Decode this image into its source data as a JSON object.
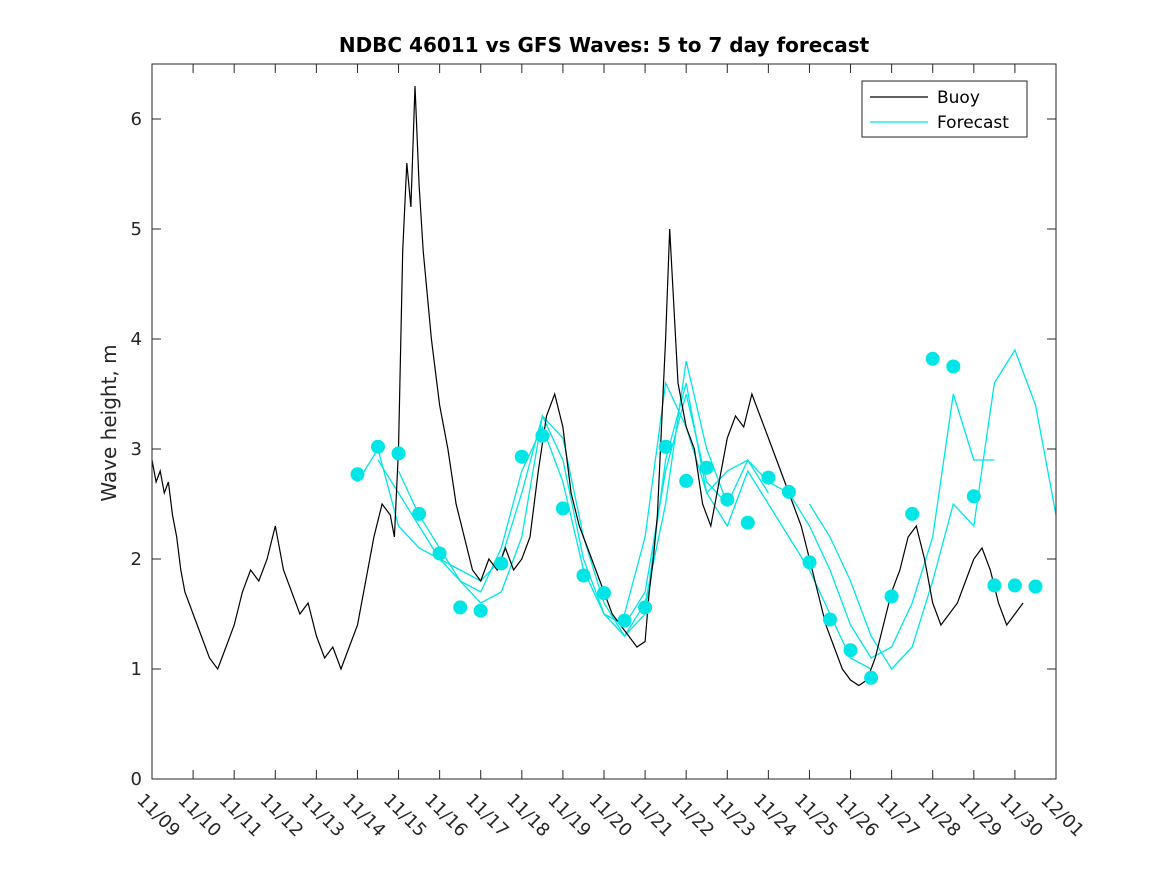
{
  "chart_data": {
    "type": "line",
    "title": "NDBC 46011 vs GFS Waves: 5 to 7 day forecast",
    "xlabel": "",
    "ylabel": "Wave height, m",
    "xlim": [
      0,
      22
    ],
    "ylim": [
      0,
      6.5
    ],
    "yticks": [
      0,
      1,
      2,
      3,
      4,
      5,
      6
    ],
    "xtick_labels": [
      "11/09",
      "11/10",
      "11/11",
      "11/12",
      "11/13",
      "11/14",
      "11/15",
      "11/16",
      "11/17",
      "11/18",
      "11/19",
      "11/20",
      "11/21",
      "11/22",
      "11/23",
      "11/24",
      "11/25",
      "11/26",
      "11/27",
      "11/28",
      "11/29",
      "11/30",
      "12/01"
    ],
    "legend": {
      "position": "top-right",
      "entries": [
        "Buoy",
        "Forecast"
      ]
    },
    "colors": {
      "buoy": "#000000",
      "forecast": "#00e5e5"
    },
    "series": [
      {
        "name": "Buoy",
        "x": [
          0.0,
          0.1,
          0.2,
          0.3,
          0.4,
          0.5,
          0.6,
          0.7,
          0.8,
          1.0,
          1.2,
          1.4,
          1.6,
          1.8,
          2.0,
          2.2,
          2.4,
          2.6,
          2.8,
          3.0,
          3.2,
          3.4,
          3.6,
          3.8,
          4.0,
          4.2,
          4.4,
          4.6,
          4.8,
          5.0,
          5.2,
          5.4,
          5.6,
          5.8,
          5.9,
          6.0,
          6.1,
          6.2,
          6.3,
          6.4,
          6.5,
          6.6,
          6.8,
          7.0,
          7.2,
          7.4,
          7.6,
          7.8,
          8.0,
          8.2,
          8.4,
          8.6,
          8.8,
          9.0,
          9.2,
          9.4,
          9.6,
          9.8,
          10.0,
          10.2,
          10.4,
          10.6,
          10.8,
          11.0,
          11.2,
          11.4,
          11.6,
          11.8,
          12.0,
          12.1,
          12.2,
          12.3,
          12.4,
          12.5,
          12.6,
          12.8,
          13.0,
          13.2,
          13.4,
          13.6,
          13.8,
          14.0,
          14.2,
          14.4,
          14.6,
          14.8,
          15.0,
          15.2,
          15.4,
          15.6,
          15.8,
          16.0,
          16.2,
          16.4,
          16.6,
          16.8,
          17.0,
          17.2,
          17.4,
          17.6,
          17.8,
          18.0,
          18.2,
          18.4,
          18.6,
          18.8,
          19.0,
          19.2,
          19.4,
          19.6,
          19.8,
          20.0,
          20.2,
          20.4,
          20.6,
          20.8,
          21.0,
          21.2
        ],
        "y": [
          2.9,
          2.7,
          2.8,
          2.6,
          2.7,
          2.4,
          2.2,
          1.9,
          1.7,
          1.5,
          1.3,
          1.1,
          1.0,
          1.2,
          1.4,
          1.7,
          1.9,
          1.8,
          2.0,
          2.3,
          1.9,
          1.7,
          1.5,
          1.6,
          1.3,
          1.1,
          1.2,
          1.0,
          1.2,
          1.4,
          1.8,
          2.2,
          2.5,
          2.4,
          2.2,
          3.0,
          4.8,
          5.6,
          5.2,
          6.3,
          5.4,
          4.8,
          4.0,
          3.4,
          3.0,
          2.5,
          2.2,
          1.9,
          1.8,
          2.0,
          1.9,
          2.1,
          1.9,
          2.0,
          2.2,
          2.8,
          3.3,
          3.5,
          3.2,
          2.6,
          2.3,
          2.1,
          1.9,
          1.7,
          1.5,
          1.4,
          1.3,
          1.2,
          1.25,
          1.7,
          2.0,
          2.4,
          3.2,
          4.0,
          5.0,
          3.6,
          3.2,
          3.0,
          2.5,
          2.3,
          2.7,
          3.1,
          3.3,
          3.2,
          3.5,
          3.3,
          3.1,
          2.9,
          2.7,
          2.5,
          2.3,
          2.0,
          1.7,
          1.4,
          1.2,
          1.0,
          0.9,
          0.85,
          0.9,
          1.1,
          1.4,
          1.7,
          1.9,
          2.2,
          2.3,
          2.0,
          1.6,
          1.4,
          1.5,
          1.6,
          1.8,
          2.0,
          2.1,
          1.9,
          1.6,
          1.4,
          1.5,
          1.6
        ]
      },
      {
        "name": "Forecast",
        "lines": [
          {
            "x": [
              5.0,
              5.5,
              6.0,
              6.5,
              7.0,
              7.5,
              8.0,
              8.5,
              9.0,
              9.5,
              10.0,
              10.5,
              11.0,
              11.5,
              12.0,
              12.5,
              13.0,
              13.5,
              14.0
            ],
            "y": [
              2.7,
              3.0,
              2.3,
              2.1,
              2.0,
              1.9,
              1.8,
              2.0,
              2.6,
              3.3,
              2.9,
              2.0,
              1.5,
              1.3,
              1.6,
              2.5,
              3.8,
              3.0,
              2.5
            ]
          },
          {
            "x": [
              5.5,
              6.0,
              6.5,
              7.0,
              7.5,
              8.0,
              8.5,
              9.0,
              9.5,
              10.0,
              10.5,
              11.0,
              11.5,
              12.0,
              12.5,
              13.0,
              13.5,
              14.0,
              14.5,
              15.0
            ],
            "y": [
              2.9,
              2.6,
              2.3,
              2.0,
              1.8,
              1.7,
              2.1,
              2.8,
              3.2,
              2.7,
              1.9,
              1.5,
              1.4,
              1.7,
              2.8,
              3.5,
              2.7,
              2.5,
              2.9,
              2.6
            ]
          },
          {
            "x": [
              6.0,
              6.5,
              7.0,
              7.5,
              8.0,
              8.5,
              9.0,
              9.5,
              10.0,
              10.5,
              11.0,
              11.5,
              12.0,
              12.5,
              13.0,
              13.5,
              14.0,
              14.5,
              15.0,
              15.5,
              16.0,
              16.5,
              17.0,
              17.5
            ],
            "y": [
              2.8,
              2.4,
              2.1,
              1.8,
              1.6,
              1.7,
              2.2,
              3.3,
              3.1,
              2.2,
              1.6,
              1.3,
              1.5,
              2.9,
              3.6,
              2.6,
              2.3,
              2.8,
              2.5,
              2.2,
              1.9,
              1.5,
              1.1,
              1.0
            ]
          },
          {
            "x": [
              11.5,
              12.0,
              12.5,
              13.0,
              13.5,
              14.0,
              14.5,
              15.0,
              15.5,
              16.0,
              16.5,
              17.0,
              17.5,
              18.0,
              18.5,
              19.0,
              19.5,
              20.0,
              20.5
            ],
            "y": [
              1.5,
              2.2,
              3.6,
              3.2,
              2.6,
              2.8,
              2.9,
              2.7,
              2.6,
              2.3,
              1.9,
              1.4,
              1.1,
              1.2,
              1.6,
              2.2,
              3.5,
              2.9,
              2.9
            ]
          },
          {
            "x": [
              16.0,
              16.5,
              17.0,
              17.5,
              18.0,
              18.5,
              19.0,
              19.5,
              20.0,
              20.5,
              21.0,
              21.5,
              22.0
            ],
            "y": [
              2.5,
              2.2,
              1.8,
              1.3,
              1.0,
              1.2,
              1.8,
              2.5,
              2.3,
              3.6,
              3.9,
              3.4,
              2.4
            ]
          }
        ],
        "markers_x": [
          5.0,
          5.5,
          6.0,
          6.5,
          7.0,
          7.5,
          8.0,
          8.5,
          9.0,
          9.5,
          10.0,
          10.5,
          11.0,
          11.5,
          12.0,
          12.5,
          13.0,
          13.5,
          14.0,
          14.5,
          15.0,
          15.5,
          16.0,
          16.5,
          17.0,
          17.5,
          18.0,
          18.5,
          19.0,
          19.5,
          20.0,
          20.5,
          21.0,
          21.5
        ],
        "markers_y": [
          2.77,
          3.02,
          2.96,
          2.41,
          2.05,
          1.56,
          1.53,
          1.96,
          2.93,
          3.12,
          2.46,
          1.85,
          1.69,
          1.44,
          1.56,
          3.02,
          2.71,
          2.83,
          2.54,
          2.33,
          2.74,
          2.61,
          1.97,
          1.45,
          1.17,
          0.92,
          1.66,
          2.41,
          3.82,
          3.75,
          2.57,
          1.76,
          1.76,
          1.75
        ]
      }
    ]
  }
}
